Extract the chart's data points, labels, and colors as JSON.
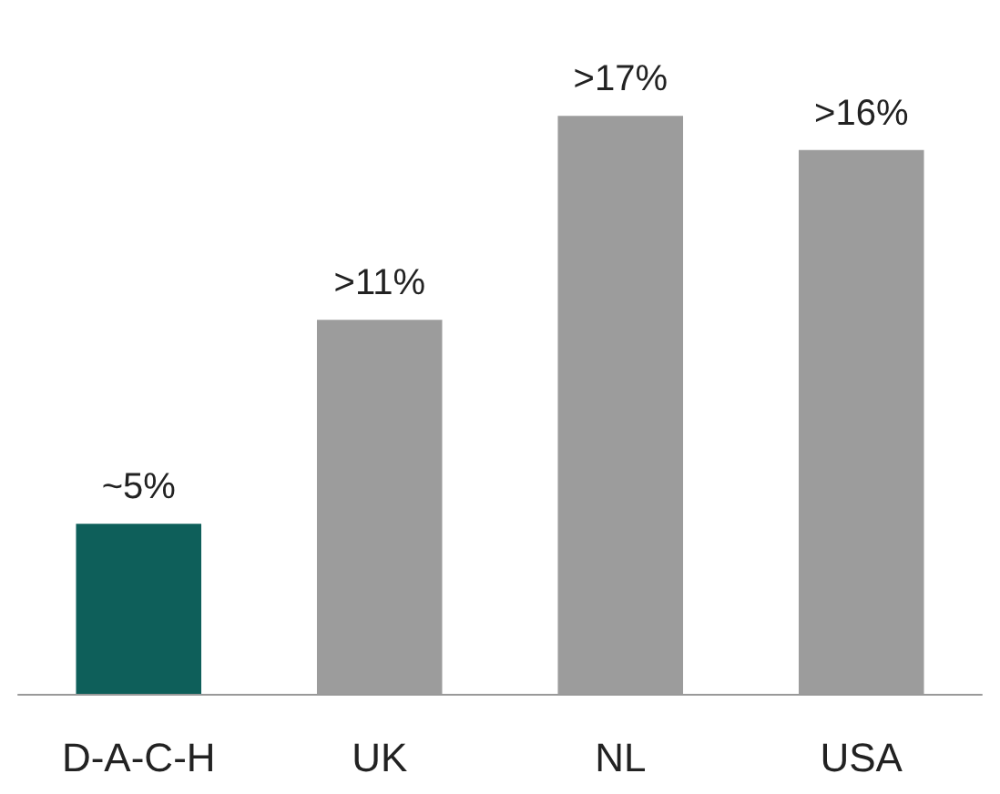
{
  "chart_data": {
    "type": "bar",
    "categories": [
      "D-A-C-H",
      "UK",
      "NL",
      "USA"
    ],
    "values": [
      5,
      11,
      17,
      16
    ],
    "colors": [
      "#0e5f5a",
      "#9c9c9c",
      "#9c9c9c",
      "#9c9c9c"
    ],
    "value_labels": [
      "~5%",
      ">11%",
      ">17%",
      ">16%"
    ]
  }
}
